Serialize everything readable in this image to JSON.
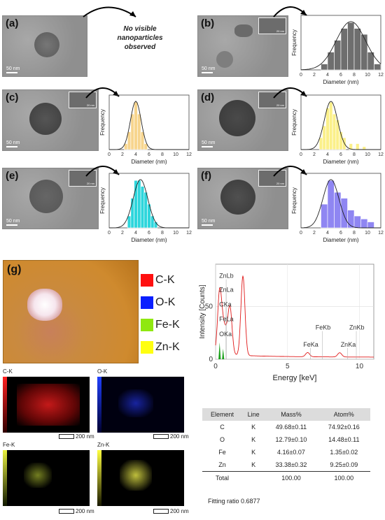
{
  "panels": {
    "a": {
      "label": "(a)",
      "scale": "50 nm",
      "note": "No visible nanoparticles observed"
    },
    "b": {
      "label": "(b)",
      "scale": "50 nm",
      "inset_scale": "20 nm"
    },
    "c": {
      "label": "(c)",
      "scale": "50 nm",
      "inset_scale": "20 nm"
    },
    "d": {
      "label": "(d)",
      "scale": "50 nm",
      "inset_scale": "20 nm"
    },
    "e": {
      "label": "(e)",
      "scale": "50 nm",
      "inset_scale": "20 nm"
    },
    "f": {
      "label": "(f)",
      "scale": "50 nm",
      "inset_scale": "20 nm"
    },
    "g": {
      "label": "(g)"
    }
  },
  "histogram_axes": {
    "xlabel": "Diameter (nm)",
    "ylabel": "Frequency",
    "xticks": [
      "0",
      "2",
      "4",
      "6",
      "8",
      "10",
      "12"
    ]
  },
  "chart_data": [
    {
      "type": "bar",
      "panel": "b",
      "xlabel": "Diameter (nm)",
      "ylabel": "Frequency",
      "xlim": [
        0,
        12
      ],
      "color": "#6e6e6e",
      "x": [
        3.5,
        4.5,
        5.5,
        6.5,
        7.5,
        8.5,
        9.5,
        10.5,
        11.5
      ],
      "values": [
        1,
        3,
        5,
        7,
        8,
        7,
        6,
        3,
        1
      ],
      "fit_center": 7.5,
      "fit_sigma": 2.2
    },
    {
      "type": "bar",
      "panel": "c",
      "xlabel": "Diameter (nm)",
      "ylabel": "Frequency",
      "xlim": [
        0,
        12
      ],
      "color": "#f7d58e",
      "x": [
        2.5,
        3.0,
        3.5,
        4.0,
        4.5,
        5.0,
        5.5
      ],
      "values": [
        1,
        3,
        6,
        8,
        6,
        3,
        1
      ],
      "fit_center": 4.0,
      "fit_sigma": 0.8
    },
    {
      "type": "bar",
      "panel": "d",
      "xlabel": "Diameter (nm)",
      "ylabel": "Frequency",
      "xlim": [
        0,
        12
      ],
      "color": "#fbf08a",
      "x": [
        3.0,
        3.5,
        4.0,
        4.5,
        5.0,
        5.5,
        6.0,
        6.5,
        7.5,
        8.5,
        9.5
      ],
      "values": [
        2,
        4,
        7,
        8,
        6,
        5,
        3,
        2,
        1,
        1,
        0.5
      ],
      "fit_center": 4.5,
      "fit_sigma": 1.0
    },
    {
      "type": "bar",
      "panel": "e",
      "xlabel": "Diameter (nm)",
      "ylabel": "Frequency",
      "xlim": [
        0,
        12
      ],
      "color": "#2ed6dc",
      "x": [
        3.0,
        3.5,
        4.0,
        4.5,
        5.0,
        5.5,
        6.0,
        6.5,
        7.0
      ],
      "values": [
        2,
        5,
        8,
        8,
        7,
        6,
        4,
        2,
        1
      ],
      "fit_center": 4.7,
      "fit_sigma": 1.1
    },
    {
      "type": "bar",
      "panel": "f",
      "xlabel": "Diameter (nm)",
      "ylabel": "Frequency",
      "xlim": [
        0,
        12
      ],
      "color": "#8f86f2",
      "x": [
        3.5,
        4.5,
        5.5,
        6.5,
        7.5,
        8.5,
        9.5,
        10.5
      ],
      "values": [
        4,
        8,
        6,
        5,
        3,
        2,
        1.5,
        1
      ],
      "fit_center": 4.5,
      "fit_sigma": 1.2
    },
    {
      "type": "line",
      "panel": "g",
      "title": "",
      "xlabel": "Energy [keV]",
      "ylabel": "Intensity [Counts]",
      "xlim": [
        0,
        11
      ],
      "ylim": [
        0,
        90
      ],
      "xticks": [
        0,
        5,
        10
      ],
      "yticks": [
        0,
        50
      ],
      "peaks": [
        {
          "x": 0.28,
          "y": 58
        },
        {
          "x": 0.52,
          "y": 18
        },
        {
          "x": 0.7,
          "y": 13
        },
        {
          "x": 0.93,
          "y": 14
        },
        {
          "x": 1.02,
          "y": 33
        },
        {
          "x": 1.9,
          "y": 75
        },
        {
          "x": 6.4,
          "y": 4
        },
        {
          "x": 8.63,
          "y": 4
        }
      ],
      "annotations": [
        {
          "text": "ZnLb",
          "x": 0.15,
          "y": 77
        },
        {
          "text": "ZnLa",
          "x": 0.15,
          "y": 64
        },
        {
          "text": "CKa",
          "x": 0.15,
          "y": 50
        },
        {
          "text": "FeLa",
          "x": 0.15,
          "y": 36
        },
        {
          "text": "OKa",
          "x": 0.15,
          "y": 22
        },
        {
          "text": "FeKb",
          "x": 6.85,
          "y": 28
        },
        {
          "text": "FeKa",
          "x": 6.0,
          "y": 12
        },
        {
          "text": "ZnKb",
          "x": 9.2,
          "y": 28
        },
        {
          "text": "ZnKa",
          "x": 8.6,
          "y": 12
        }
      ]
    }
  ],
  "legend": [
    {
      "label": "C-K",
      "color": "#ff1010"
    },
    {
      "label": "O-K",
      "color": "#0a1fff"
    },
    {
      "label": "Fe-K",
      "color": "#8fe810"
    },
    {
      "label": "Zn-K",
      "color": "#ffff10"
    }
  ],
  "maps": [
    {
      "label": "C-K",
      "scale": "200 nm",
      "color": "#ff2020"
    },
    {
      "label": "O-K",
      "scale": "200 nm",
      "color": "#2030ff"
    },
    {
      "label": "Fe-K",
      "scale": "200 nm",
      "color": "#d8e840"
    },
    {
      "label": "Zn-K",
      "scale": "200 nm",
      "color": "#ffff40"
    }
  ],
  "table": {
    "headers": [
      "Element",
      "Line",
      "Mass%",
      "Atom%"
    ],
    "rows": [
      [
        "C",
        "K",
        "49.68±0.11",
        "74.92±0.16"
      ],
      [
        "O",
        "K",
        "12.79±0.10",
        "14.48±0.11"
      ],
      [
        "Fe",
        "K",
        "4.16±0.07",
        "1.35±0.02"
      ],
      [
        "Zn",
        "K",
        "33.38±0.32",
        "9.25±0.09"
      ]
    ],
    "total": [
      "Total",
      "",
      "100.00",
      "100.00"
    ],
    "fitting": "Fitting ratio 0.6877"
  }
}
